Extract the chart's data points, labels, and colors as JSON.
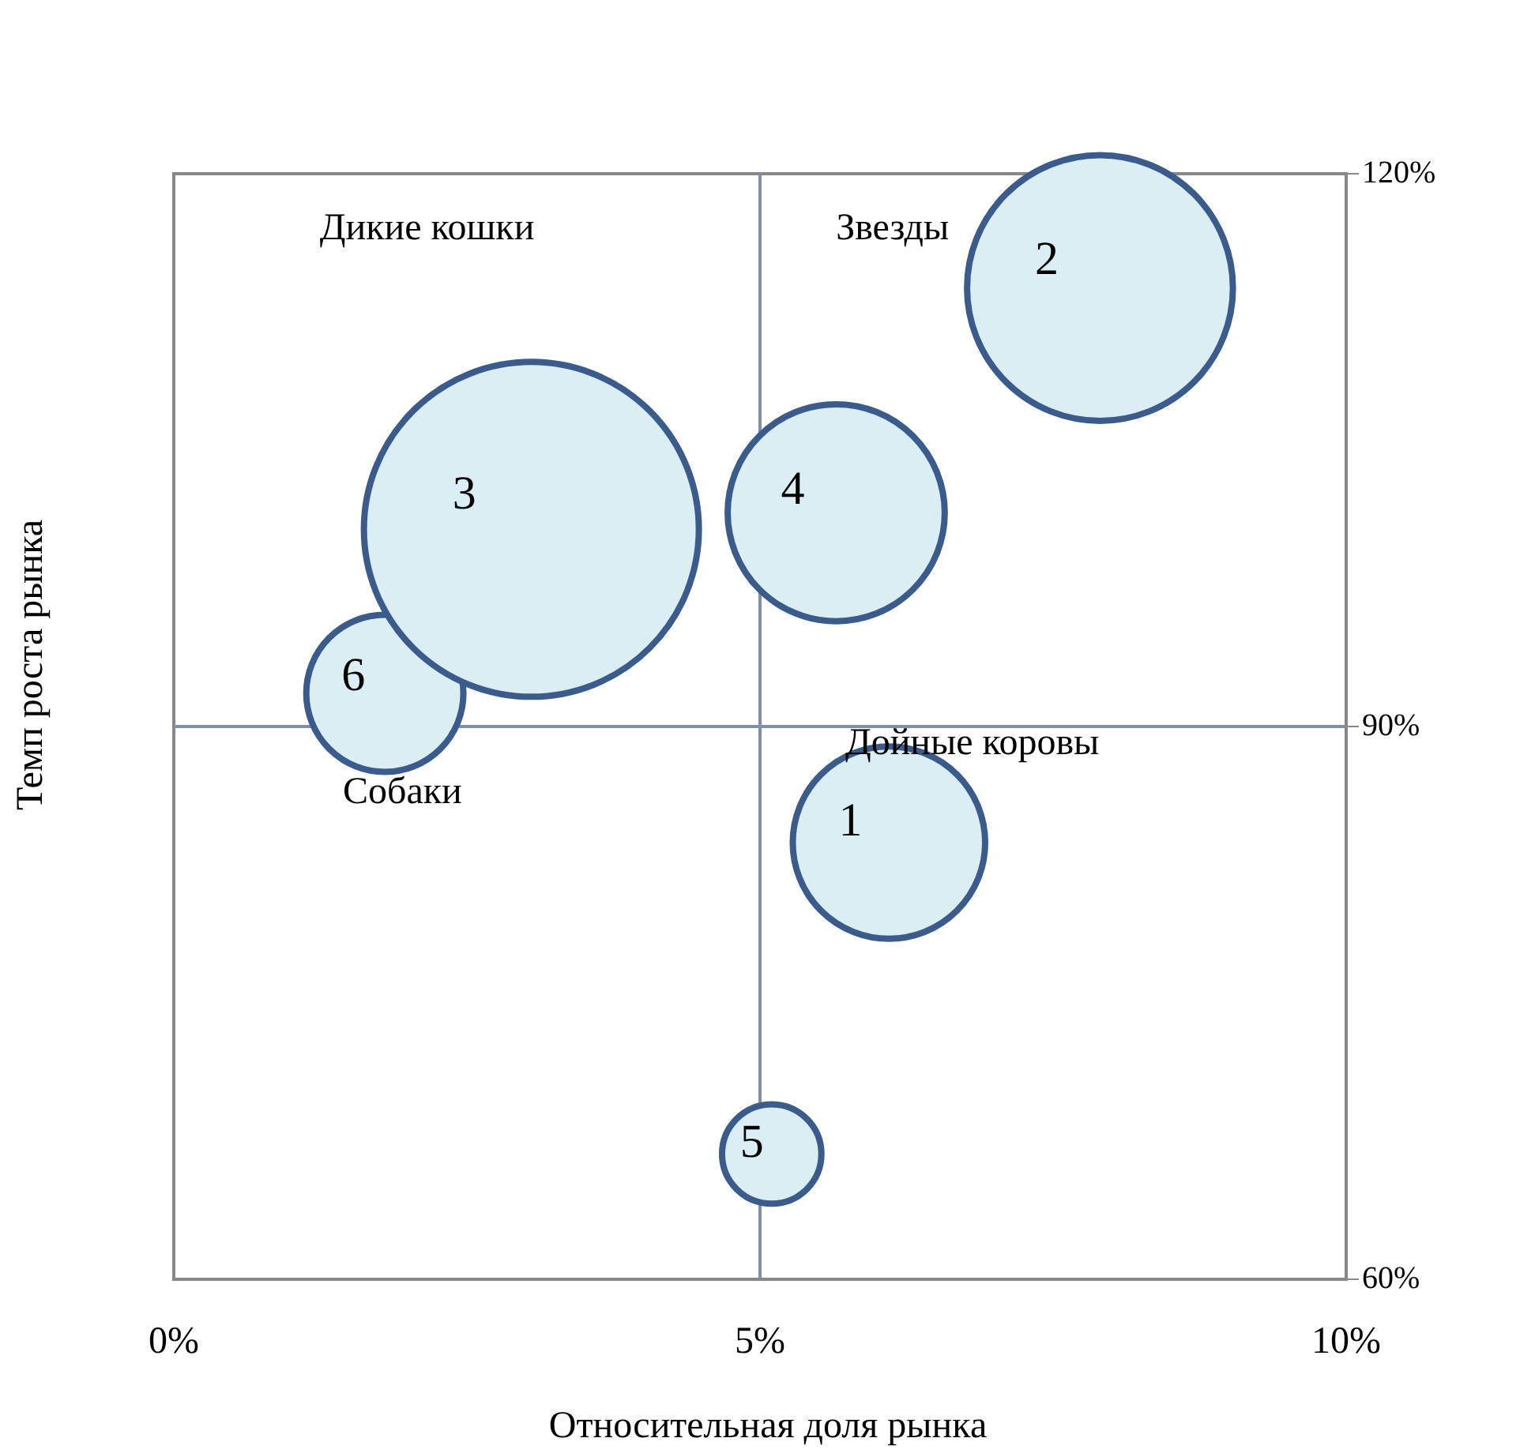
{
  "chart_data": {
    "type": "bubble",
    "xlabel": "Относительная доля рынка",
    "ylabel": "Темп роста рынка",
    "xlim": [
      0,
      10
    ],
    "xticks": [
      {
        "value": 0,
        "label": "0%"
      },
      {
        "value": 5,
        "label": "5%"
      },
      {
        "value": 10,
        "label": "10%"
      }
    ],
    "ylim": [
      60,
      120
    ],
    "yticks": [
      {
        "value": 60,
        "label": "60%"
      },
      {
        "value": 90,
        "label": "90%"
      },
      {
        "value": 120,
        "label": "120%"
      }
    ],
    "legend": false,
    "ref_lines": [
      {
        "axis": "x",
        "value": 5,
        "color": "#7f8fa8"
      },
      {
        "axis": "y",
        "value": 90,
        "color": "#7f8fa8"
      }
    ],
    "annotations": [
      "Дикие кошки",
      "Звезды",
      "Дойные коровы",
      "Собаки"
    ],
    "series": [
      {
        "name": "1",
        "color": "#dbeef4",
        "x": [
          6.1
        ],
        "values": [
          83.7
        ],
        "sizes": [
          0.33
        ]
      },
      {
        "name": "2",
        "color": "#dbeef4",
        "x": [
          7.9
        ],
        "values": [
          113.8
        ],
        "sizes": [
          0.63
        ]
      },
      {
        "name": "3",
        "color": "#dbeef4",
        "x": [
          3.05
        ],
        "values": [
          100.7
        ],
        "sizes": [
          1
        ]
      },
      {
        "name": "4",
        "color": "#dbeef4",
        "x": [
          5.65
        ],
        "values": [
          101.6
        ],
        "sizes": [
          0.42
        ]
      },
      {
        "name": "5",
        "color": "#dbeef4",
        "x": [
          5.1
        ],
        "values": [
          66.8
        ],
        "sizes": [
          0.088
        ]
      },
      {
        "name": "6",
        "color": "#dbeef4",
        "x": [
          1.8
        ],
        "values": [
          91.8
        ],
        "sizes": [
          0.22
        ]
      }
    ]
  }
}
